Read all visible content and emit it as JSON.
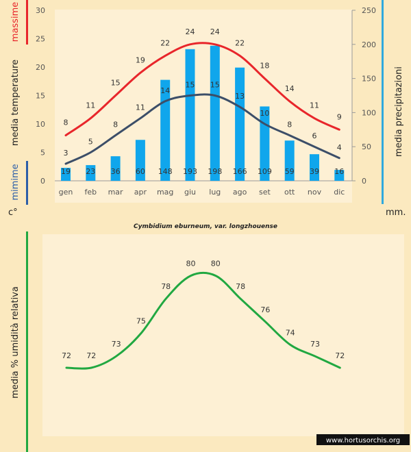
{
  "chart_data": [
    {
      "type": "bar+line",
      "title": "Cymbidium eburneum, var. longzhouense",
      "categories": [
        "gen",
        "feb",
        "mar",
        "apr",
        "mag",
        "giu",
        "lug",
        "ago",
        "set",
        "ott",
        "nov",
        "dic"
      ],
      "left_axis": {
        "label": "media temperature",
        "unit": "c°",
        "ylim": [
          0,
          30
        ],
        "ticks": [
          0,
          5,
          10,
          15,
          20,
          25,
          30
        ]
      },
      "right_axis": {
        "label": "media precipitazioni",
        "unit": "mm.",
        "ylim": [
          0,
          250
        ],
        "ticks": [
          0,
          50,
          100,
          150,
          200,
          250
        ]
      },
      "series": [
        {
          "name": "massime",
          "axis": "left",
          "kind": "line",
          "color": "#e8262b",
          "values": [
            8,
            11,
            15,
            19,
            22,
            24,
            24,
            22,
            18,
            14,
            11,
            9
          ]
        },
        {
          "name": "mimime",
          "axis": "left",
          "kind": "line",
          "color": "#3c4e68",
          "values": [
            3,
            5,
            8,
            11,
            14,
            15,
            15,
            13,
            10,
            8,
            6,
            4
          ]
        },
        {
          "name": "precipitazioni",
          "axis": "right",
          "kind": "bar",
          "color": "#10a6ec",
          "values": [
            19,
            23,
            36,
            60,
            148,
            193,
            198,
            166,
            109,
            59,
            39,
            16
          ]
        }
      ]
    },
    {
      "type": "line",
      "ylabel": "media % umidità relativa",
      "series": [
        {
          "name": "umidità",
          "color": "#21a841",
          "values": [
            72,
            72,
            73,
            75,
            78,
            80,
            80,
            78,
            76,
            74,
            73,
            72
          ]
        }
      ]
    }
  ],
  "watermark": "www.hortusorchis.org",
  "colors": {
    "bg": "#fbe9bf",
    "plot_bg": "#fdf0d4",
    "right_axis_bar": "#2fa9de",
    "humidity_bar": "#21a841",
    "min_bar": "#2c5ea8"
  }
}
